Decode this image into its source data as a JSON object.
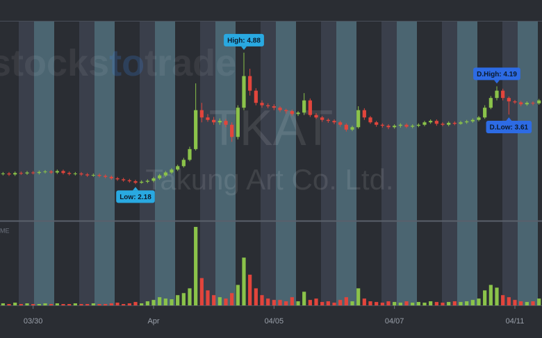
{
  "chart_data": {
    "type": "candlestick",
    "watermark": {
      "logo": [
        "stocks",
        "to",
        "trade"
      ],
      "symbol": "TKAT",
      "company": "Takung Art Co. Ltd."
    },
    "volume_label": "ME",
    "categories": [
      null,
      null,
      null,
      null,
      null,
      "03/30",
      null,
      null,
      null,
      null,
      null,
      null,
      null,
      null,
      null,
      null,
      null,
      null,
      null,
      null,
      null,
      null,
      null,
      null,
      null,
      "Apr",
      null,
      null,
      null,
      null,
      null,
      null,
      null,
      null,
      null,
      null,
      null,
      null,
      null,
      null,
      null,
      null,
      null,
      null,
      null,
      "04/05",
      null,
      null,
      null,
      null,
      null,
      null,
      null,
      null,
      null,
      null,
      null,
      null,
      null,
      null,
      null,
      null,
      null,
      null,
      null,
      "04/07",
      null,
      null,
      null,
      null,
      null,
      null,
      null,
      null,
      null,
      null,
      null,
      null,
      null,
      null,
      null,
      null,
      null,
      null,
      null,
      "04/11",
      null,
      null,
      null,
      null
    ],
    "open": [
      2.39,
      2.4,
      2.38,
      2.41,
      2.4,
      2.42,
      2.41,
      2.43,
      2.44,
      2.42,
      2.45,
      2.41,
      2.39,
      2.4,
      2.38,
      2.36,
      2.37,
      2.35,
      2.33,
      2.3,
      2.28,
      2.26,
      2.24,
      2.21,
      2.23,
      2.25,
      2.3,
      2.36,
      2.42,
      2.48,
      2.55,
      2.68,
      2.9,
      3.7,
      3.55,
      3.5,
      3.45,
      3.48,
      3.4,
      3.15,
      3.75,
      4.4,
      4.1,
      3.85,
      3.8,
      3.78,
      3.75,
      3.7,
      3.68,
      3.62,
      3.65,
      3.9,
      3.6,
      3.55,
      3.5,
      3.48,
      3.45,
      3.4,
      3.3,
      3.35,
      3.7,
      3.55,
      3.45,
      3.4,
      3.38,
      3.35,
      3.38,
      3.4,
      3.36,
      3.38,
      3.4,
      3.45,
      3.48,
      3.42,
      3.4,
      3.44,
      3.42,
      3.45,
      3.47,
      3.5,
      3.55,
      3.75,
      3.95,
      4.1,
      3.95,
      3.88,
      3.86,
      3.82,
      3.85,
      3.84
    ],
    "high": [
      2.43,
      2.43,
      2.44,
      2.44,
      2.45,
      2.45,
      2.46,
      2.47,
      2.47,
      2.48,
      2.48,
      2.44,
      2.43,
      2.43,
      2.41,
      2.4,
      2.4,
      2.38,
      2.36,
      2.33,
      2.31,
      2.29,
      2.27,
      2.26,
      2.28,
      2.33,
      2.39,
      2.45,
      2.51,
      2.58,
      2.72,
      2.95,
      4.25,
      3.85,
      3.62,
      3.56,
      3.53,
      3.52,
      3.45,
      3.8,
      4.88,
      4.55,
      4.15,
      3.9,
      3.84,
      3.82,
      3.78,
      3.73,
      3.71,
      3.68,
      4.05,
      3.94,
      3.64,
      3.58,
      3.53,
      3.51,
      3.48,
      3.43,
      3.38,
      3.78,
      3.74,
      3.58,
      3.48,
      3.43,
      3.41,
      3.41,
      3.43,
      3.43,
      3.41,
      3.43,
      3.48,
      3.51,
      3.51,
      3.45,
      3.47,
      3.47,
      3.48,
      3.5,
      3.53,
      3.58,
      3.8,
      3.99,
      4.19,
      4.14,
      3.98,
      3.91,
      3.89,
      3.88,
      3.88,
      3.93
    ],
    "low": [
      2.36,
      2.35,
      2.35,
      2.37,
      2.37,
      2.38,
      2.38,
      2.4,
      2.39,
      2.39,
      2.38,
      2.36,
      2.36,
      2.35,
      2.33,
      2.33,
      2.32,
      2.3,
      2.27,
      2.25,
      2.23,
      2.21,
      2.18,
      2.19,
      2.2,
      2.22,
      2.27,
      2.33,
      2.39,
      2.45,
      2.52,
      2.65,
      2.87,
      3.45,
      3.46,
      3.4,
      3.4,
      3.35,
      3.05,
      3.1,
      3.7,
      4.0,
      3.8,
      3.75,
      3.74,
      3.7,
      3.66,
      3.63,
      3.58,
      3.58,
      3.6,
      3.56,
      3.52,
      3.46,
      3.44,
      3.41,
      3.36,
      3.26,
      3.27,
      3.32,
      3.5,
      3.42,
      3.36,
      3.34,
      3.31,
      3.32,
      3.34,
      3.33,
      3.33,
      3.35,
      3.37,
      3.42,
      3.38,
      3.37,
      3.37,
      3.39,
      3.4,
      3.42,
      3.44,
      3.47,
      3.52,
      3.72,
      3.9,
      3.9,
      3.61,
      3.83,
      3.78,
      3.79,
      3.8,
      3.81
    ],
    "close": [
      2.4,
      2.38,
      2.41,
      2.4,
      2.42,
      2.41,
      2.43,
      2.44,
      2.42,
      2.45,
      2.41,
      2.39,
      2.4,
      2.38,
      2.36,
      2.37,
      2.35,
      2.33,
      2.3,
      2.28,
      2.26,
      2.24,
      2.21,
      2.23,
      2.25,
      2.3,
      2.36,
      2.42,
      2.48,
      2.55,
      2.68,
      2.9,
      3.7,
      3.55,
      3.5,
      3.45,
      3.48,
      3.4,
      3.15,
      3.75,
      4.4,
      4.1,
      3.85,
      3.8,
      3.78,
      3.75,
      3.7,
      3.68,
      3.62,
      3.65,
      3.9,
      3.6,
      3.55,
      3.5,
      3.48,
      3.45,
      3.4,
      3.3,
      3.35,
      3.7,
      3.55,
      3.45,
      3.4,
      3.38,
      3.35,
      3.38,
      3.4,
      3.36,
      3.38,
      3.4,
      3.45,
      3.48,
      3.42,
      3.4,
      3.44,
      3.42,
      3.45,
      3.47,
      3.5,
      3.55,
      3.75,
      3.95,
      4.1,
      3.95,
      3.88,
      3.86,
      3.82,
      3.85,
      3.84,
      3.9
    ],
    "volume": [
      3,
      2,
      4,
      2,
      3,
      2,
      2,
      3,
      2,
      3,
      2,
      2,
      3,
      2,
      2,
      3,
      2,
      2,
      3,
      4,
      2,
      3,
      5,
      3,
      6,
      8,
      12,
      10,
      9,
      15,
      18,
      25,
      115,
      40,
      22,
      15,
      12,
      10,
      18,
      30,
      70,
      45,
      25,
      15,
      10,
      8,
      8,
      6,
      12,
      6,
      20,
      8,
      10,
      5,
      6,
      4,
      8,
      12,
      6,
      25,
      10,
      6,
      5,
      4,
      6,
      5,
      4,
      6,
      4,
      5,
      4,
      6,
      5,
      4,
      5,
      6,
      5,
      6,
      8,
      10,
      22,
      30,
      26,
      15,
      12,
      8,
      6,
      5,
      6,
      10
    ],
    "ylim": [
      1.43,
      5.52
    ],
    "volume_ylim": [
      0,
      120
    ],
    "up_color": "#8bc34a",
    "down_color": "#e2453c",
    "annotations": [
      {
        "text": "High: 4.88",
        "value": 4.88,
        "kind": "high",
        "color": "#29a9e1"
      },
      {
        "text": "Low: 2.18",
        "value": 2.18,
        "kind": "low",
        "color": "#29a9e1"
      },
      {
        "text": "D.High: 4.19",
        "value": 4.19,
        "kind": "high",
        "color": "#2d6be4"
      },
      {
        "text": "D.Low: 3.61",
        "value": 3.61,
        "kind": "low",
        "color": "#2d6be4"
      }
    ]
  }
}
